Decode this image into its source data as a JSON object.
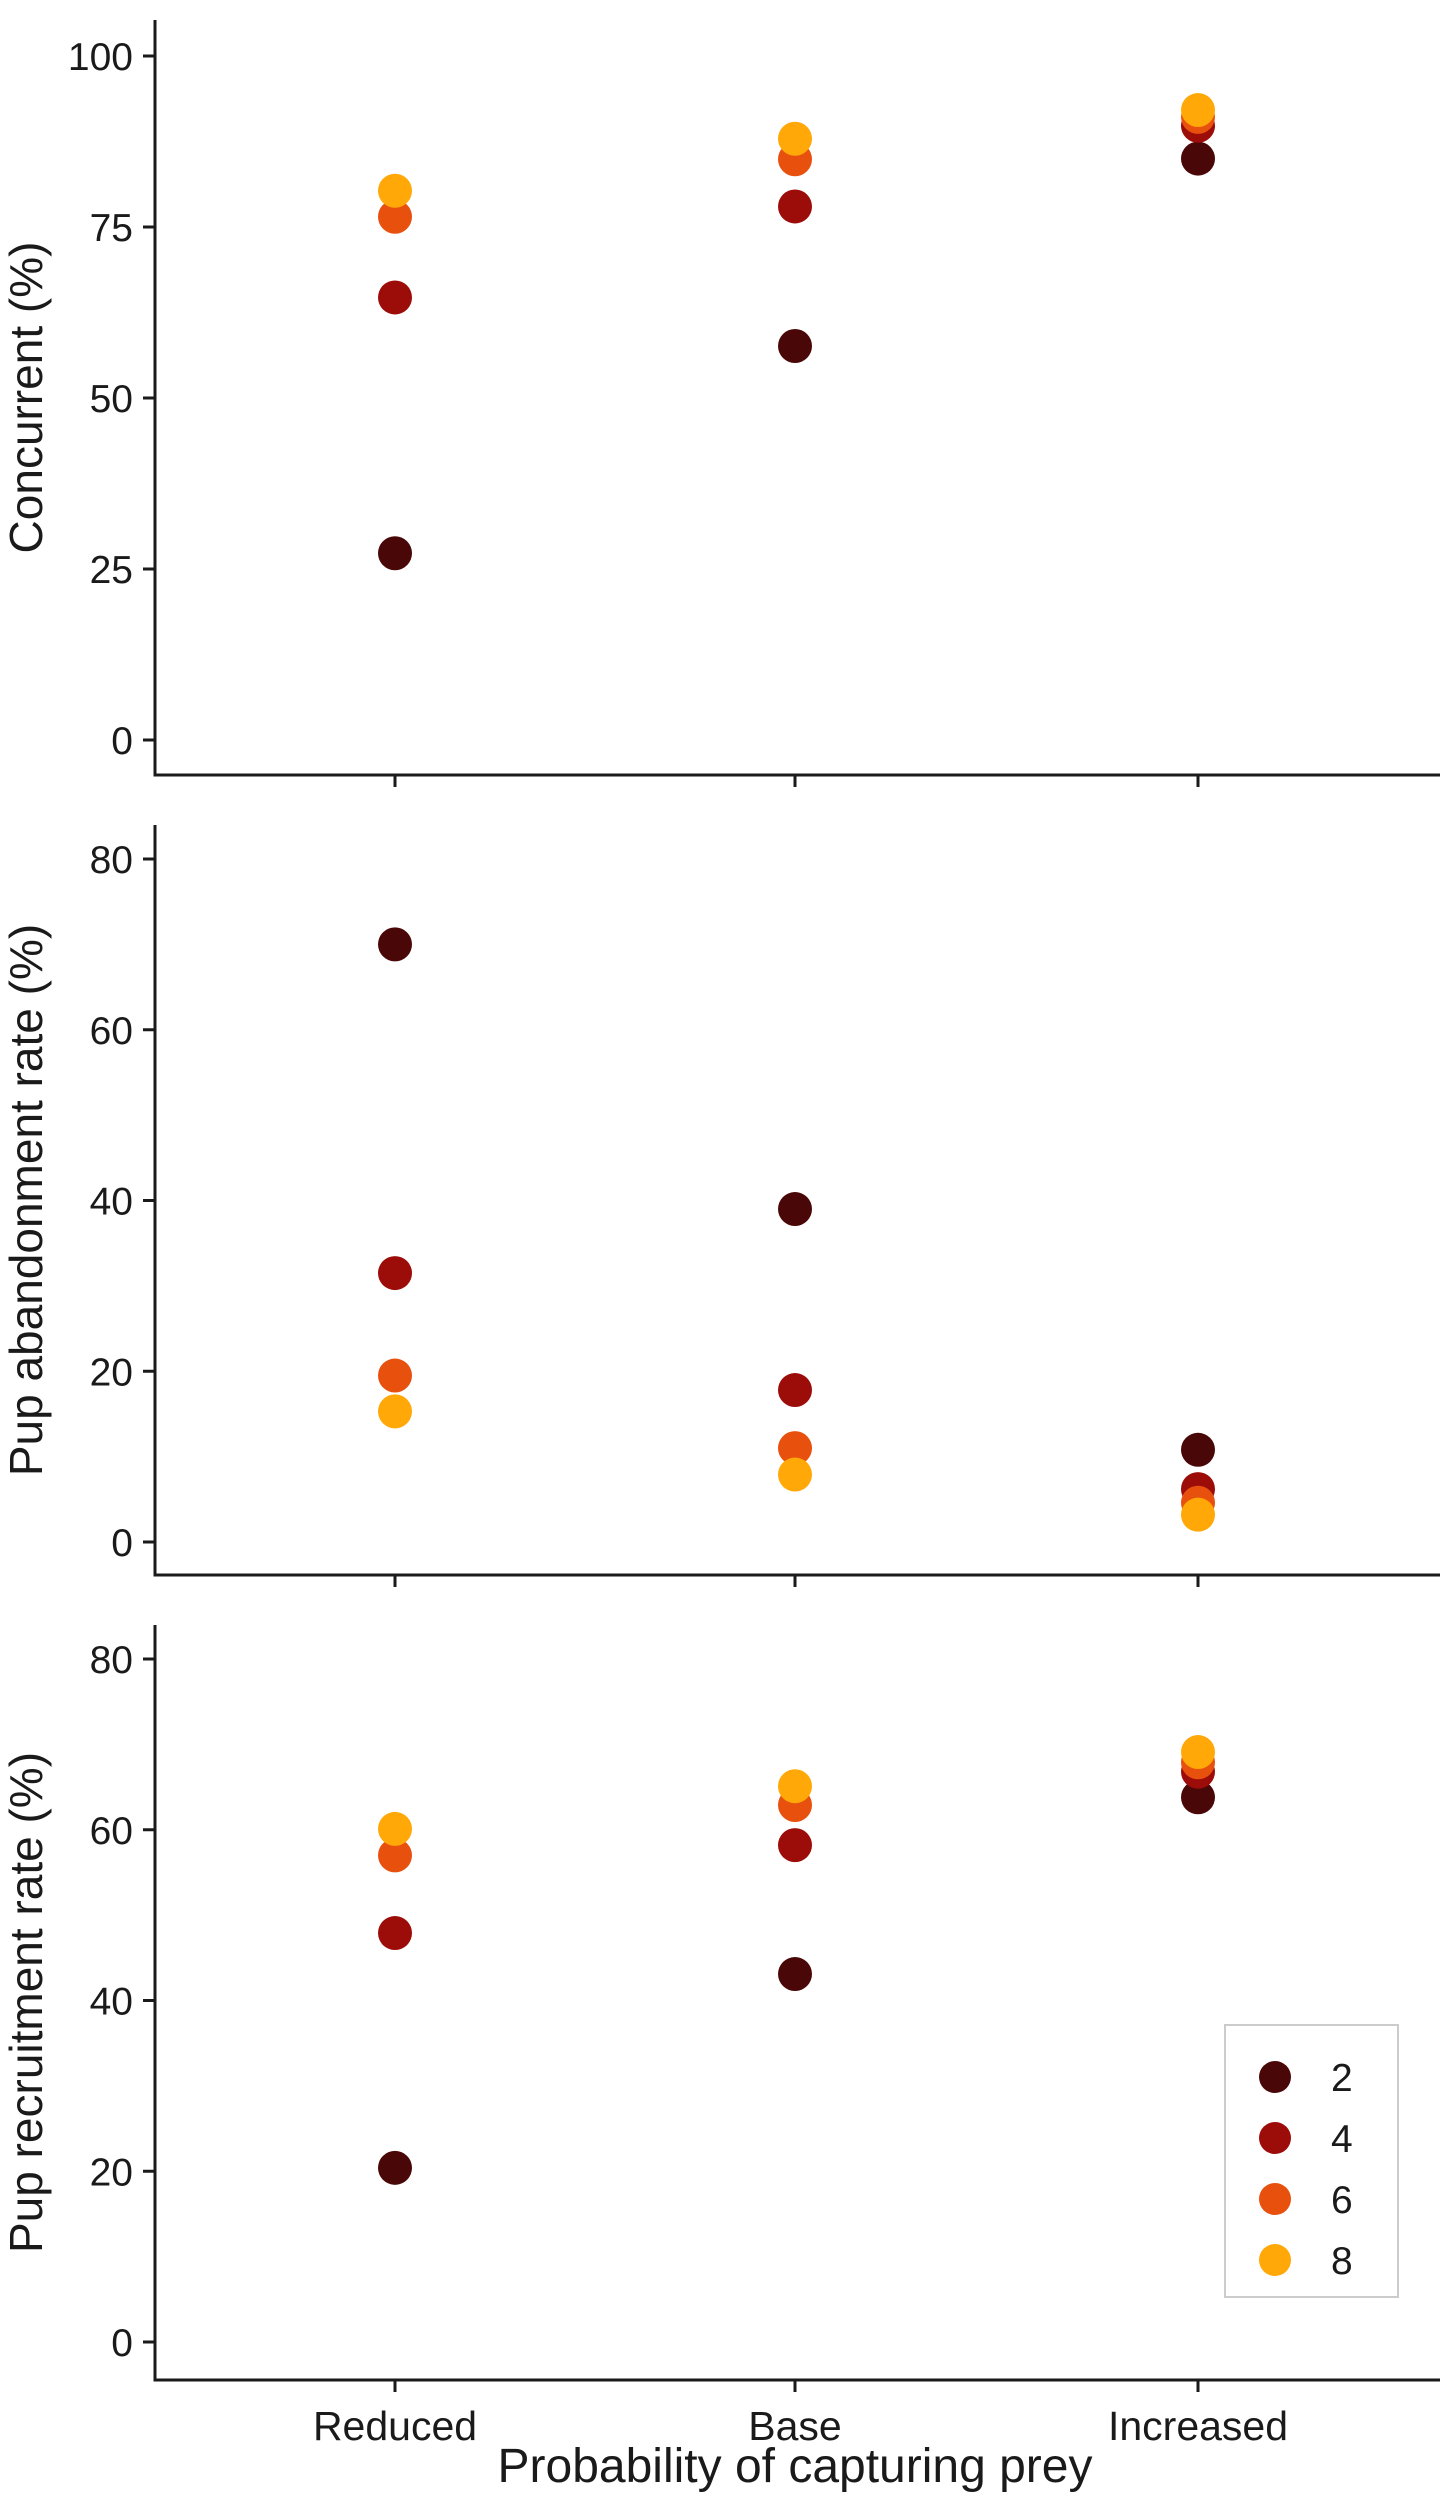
{
  "colors": {
    "axis": "#1a1a1a",
    "legend_border": "#cccccc",
    "series": [
      "#4a0707",
      "#9c0d0a",
      "#e8500e",
      "#ffa808"
    ]
  },
  "xlabel": "Probability of capturing prey",
  "chart_data": [
    {
      "type": "scatter",
      "categories": [
        "Reduced",
        "Base",
        "Increased"
      ],
      "ylabel": "Concurrent (%)",
      "ylim": [
        0,
        100
      ],
      "yticks": [
        0,
        25,
        50,
        75,
        100
      ],
      "series": [
        {
          "name": "2",
          "values": [
            27.3,
            57.6,
            85.0
          ]
        },
        {
          "name": "4",
          "values": [
            64.7,
            78.0,
            89.8
          ]
        },
        {
          "name": "6",
          "values": [
            76.5,
            84.9,
            91.1
          ]
        },
        {
          "name": "8",
          "values": [
            80.3,
            87.9,
            92.1
          ]
        }
      ]
    },
    {
      "type": "scatter",
      "categories": [
        "Reduced",
        "Base",
        "Increased"
      ],
      "ylabel": "Pup abandonment rate (%)",
      "ylim": [
        0,
        80
      ],
      "yticks": [
        0,
        20,
        40,
        60,
        80
      ],
      "series": [
        {
          "name": "2",
          "values": [
            70.0,
            39.0,
            10.8
          ]
        },
        {
          "name": "4",
          "values": [
            31.5,
            17.8,
            6.2
          ]
        },
        {
          "name": "6",
          "values": [
            19.5,
            11.0,
            4.6
          ]
        },
        {
          "name": "8",
          "values": [
            15.3,
            7.9,
            3.2
          ]
        }
      ]
    },
    {
      "type": "scatter",
      "categories": [
        "Reduced",
        "Base",
        "Increased"
      ],
      "ylabel": "Pup recruitment rate (%)",
      "ylim": [
        0,
        80
      ],
      "yticks": [
        0,
        20,
        40,
        60,
        80
      ],
      "legend_position": "bottom-right",
      "series": [
        {
          "name": "2",
          "values": [
            20.4,
            43.1,
            63.8
          ]
        },
        {
          "name": "4",
          "values": [
            47.9,
            58.2,
            66.8
          ]
        },
        {
          "name": "6",
          "values": [
            57.0,
            62.9,
            67.9
          ]
        },
        {
          "name": "8",
          "values": [
            60.1,
            65.1,
            69.1
          ]
        }
      ]
    }
  ]
}
